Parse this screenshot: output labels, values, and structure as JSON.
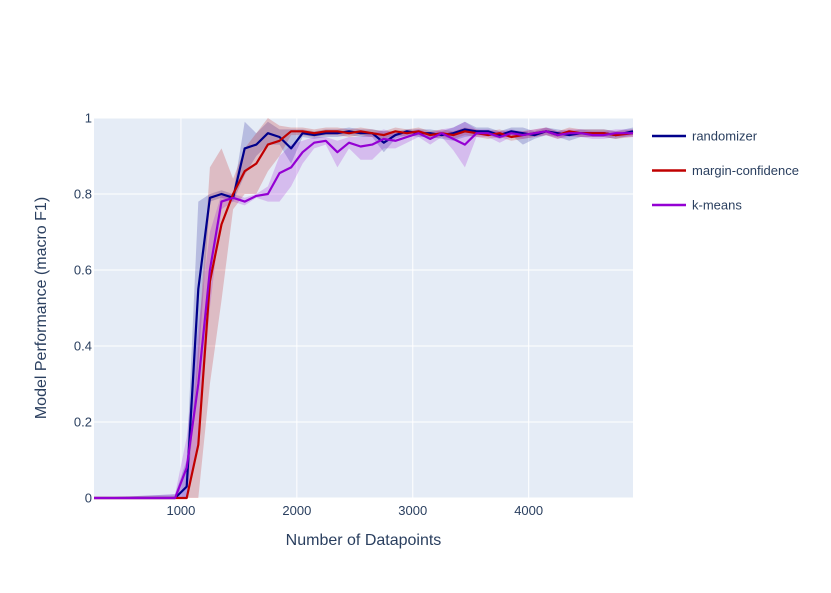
{
  "chart_data": {
    "type": "line",
    "xlabel": "Number of Datapoints",
    "ylabel": "Model Performance (macro F1)",
    "xlim": [
      250,
      4900
    ],
    "ylim": [
      0,
      1
    ],
    "x_ticks": [
      1000,
      2000,
      3000,
      4000
    ],
    "y_ticks": [
      0,
      0.2,
      0.4,
      0.6,
      0.8,
      1
    ],
    "x_tick_labels": [
      "1000",
      "2000",
      "3000",
      "4000"
    ],
    "y_tick_labels": [
      "0",
      "0.2",
      "0.4",
      "0.6",
      "0.8",
      "1"
    ],
    "grid": true,
    "legend_position": "top-right",
    "colors": {
      "plot_bg": "#e5ecf6",
      "grid": "#ffffff",
      "text": "#2a3f5f"
    },
    "series": [
      {
        "name": "randomizer",
        "color": "#00008b",
        "x": [
          250,
          950,
          1050,
          1150,
          1250,
          1350,
          1450,
          1550,
          1650,
          1750,
          1850,
          1950,
          2050,
          2150,
          2250,
          2350,
          2450,
          2550,
          2650,
          2750,
          2850,
          2950,
          3050,
          3150,
          3250,
          3350,
          3450,
          3550,
          3650,
          3750,
          3850,
          3950,
          4050,
          4150,
          4250,
          4350,
          4450,
          4550,
          4650,
          4750,
          4900
        ],
        "y": [
          0,
          0,
          0.03,
          0.55,
          0.79,
          0.8,
          0.79,
          0.92,
          0.93,
          0.96,
          0.95,
          0.92,
          0.96,
          0.955,
          0.96,
          0.96,
          0.965,
          0.96,
          0.96,
          0.935,
          0.955,
          0.965,
          0.96,
          0.96,
          0.955,
          0.96,
          0.97,
          0.965,
          0.965,
          0.955,
          0.965,
          0.96,
          0.955,
          0.965,
          0.96,
          0.955,
          0.96,
          0.96,
          0.96,
          0.955,
          0.965
        ],
        "upper": [
          0,
          0.01,
          0.1,
          0.78,
          0.8,
          0.81,
          0.8,
          0.99,
          0.96,
          0.99,
          0.97,
          0.97,
          0.97,
          0.965,
          0.97,
          0.97,
          0.975,
          0.97,
          0.97,
          0.965,
          0.965,
          0.97,
          0.97,
          0.97,
          0.965,
          0.975,
          0.99,
          0.975,
          0.975,
          0.965,
          0.975,
          0.975,
          0.965,
          0.975,
          0.97,
          0.965,
          0.97,
          0.97,
          0.97,
          0.965,
          0.975
        ],
        "lower": [
          0,
          0,
          0,
          0.35,
          0.78,
          0.79,
          0.78,
          0.85,
          0.9,
          0.93,
          0.93,
          0.88,
          0.95,
          0.945,
          0.95,
          0.95,
          0.955,
          0.95,
          0.95,
          0.91,
          0.945,
          0.955,
          0.95,
          0.95,
          0.945,
          0.94,
          0.95,
          0.955,
          0.955,
          0.945,
          0.955,
          0.93,
          0.945,
          0.955,
          0.95,
          0.94,
          0.95,
          0.95,
          0.95,
          0.945,
          0.955
        ]
      },
      {
        "name": "margin-confidence",
        "color": "#c00000",
        "x": [
          250,
          1050,
          1150,
          1250,
          1350,
          1450,
          1550,
          1650,
          1750,
          1850,
          1950,
          2050,
          2150,
          2250,
          2350,
          2450,
          2550,
          2650,
          2750,
          2850,
          2950,
          3050,
          3150,
          3250,
          3350,
          3450,
          3550,
          3650,
          3750,
          3850,
          3950,
          4050,
          4150,
          4250,
          4350,
          4450,
          4550,
          4650,
          4750,
          4900
        ],
        "y": [
          0,
          0,
          0.14,
          0.57,
          0.72,
          0.8,
          0.86,
          0.88,
          0.93,
          0.94,
          0.965,
          0.965,
          0.96,
          0.965,
          0.965,
          0.96,
          0.965,
          0.96,
          0.955,
          0.965,
          0.96,
          0.965,
          0.955,
          0.96,
          0.955,
          0.965,
          0.96,
          0.955,
          0.96,
          0.95,
          0.955,
          0.96,
          0.965,
          0.955,
          0.965,
          0.96,
          0.96,
          0.96,
          0.955,
          0.96
        ],
        "upper": [
          0,
          0,
          0.4,
          0.87,
          0.92,
          0.84,
          0.92,
          0.96,
          1.0,
          0.98,
          0.975,
          0.975,
          0.97,
          0.975,
          0.975,
          0.97,
          0.975,
          0.97,
          0.965,
          0.975,
          0.97,
          0.975,
          0.965,
          0.97,
          0.965,
          0.975,
          0.97,
          0.965,
          0.97,
          0.96,
          0.965,
          0.97,
          0.975,
          0.965,
          0.975,
          0.97,
          0.97,
          0.97,
          0.965,
          0.97
        ],
        "lower": [
          0,
          0,
          0,
          0.3,
          0.52,
          0.76,
          0.8,
          0.8,
          0.86,
          0.9,
          0.955,
          0.955,
          0.95,
          0.955,
          0.955,
          0.95,
          0.955,
          0.95,
          0.945,
          0.955,
          0.95,
          0.955,
          0.945,
          0.95,
          0.945,
          0.955,
          0.95,
          0.945,
          0.95,
          0.94,
          0.945,
          0.95,
          0.955,
          0.945,
          0.955,
          0.95,
          0.95,
          0.95,
          0.945,
          0.95
        ]
      },
      {
        "name": "k-means",
        "color": "#9400d3",
        "x": [
          250,
          950,
          1050,
          1150,
          1250,
          1350,
          1450,
          1550,
          1650,
          1750,
          1850,
          1950,
          2050,
          2150,
          2250,
          2350,
          2450,
          2550,
          2650,
          2750,
          2850,
          2950,
          3050,
          3150,
          3250,
          3350,
          3450,
          3550,
          3650,
          3750,
          3850,
          3950,
          4050,
          4150,
          4250,
          4350,
          4450,
          4550,
          4650,
          4750,
          4900
        ],
        "y": [
          0,
          0,
          0.08,
          0.3,
          0.6,
          0.78,
          0.79,
          0.78,
          0.795,
          0.8,
          0.855,
          0.87,
          0.91,
          0.935,
          0.94,
          0.91,
          0.935,
          0.925,
          0.93,
          0.945,
          0.94,
          0.95,
          0.96,
          0.945,
          0.96,
          0.945,
          0.93,
          0.96,
          0.96,
          0.95,
          0.96,
          0.955,
          0.96,
          0.965,
          0.955,
          0.96,
          0.96,
          0.955,
          0.955,
          0.96,
          0.96
        ],
        "upper": [
          0,
          0.01,
          0.16,
          0.45,
          0.7,
          0.8,
          0.8,
          0.79,
          0.8,
          0.82,
          0.9,
          0.93,
          0.94,
          0.95,
          0.95,
          0.94,
          0.95,
          0.95,
          0.96,
          0.97,
          0.96,
          0.965,
          0.97,
          0.96,
          0.97,
          0.975,
          0.99,
          0.97,
          0.97,
          0.965,
          0.97,
          0.965,
          0.97,
          0.975,
          0.965,
          0.97,
          0.97,
          0.965,
          0.965,
          0.97,
          0.97
        ],
        "lower": [
          0,
          0,
          0,
          0.15,
          0.5,
          0.76,
          0.78,
          0.77,
          0.79,
          0.78,
          0.78,
          0.82,
          0.88,
          0.92,
          0.93,
          0.87,
          0.92,
          0.89,
          0.89,
          0.92,
          0.92,
          0.935,
          0.95,
          0.93,
          0.95,
          0.915,
          0.87,
          0.95,
          0.95,
          0.935,
          0.95,
          0.945,
          0.95,
          0.955,
          0.945,
          0.95,
          0.95,
          0.945,
          0.945,
          0.95,
          0.95
        ]
      }
    ]
  }
}
